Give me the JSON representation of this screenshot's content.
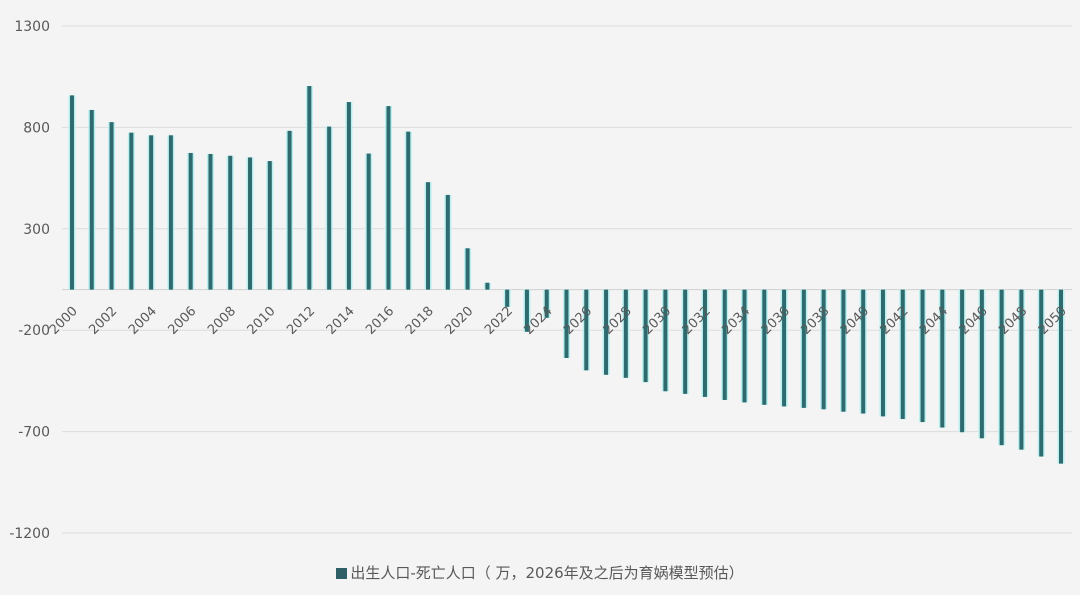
{
  "chart_data": {
    "type": "bar",
    "title": "",
    "xlabel": "",
    "ylabel": "",
    "ylim": [
      -1200,
      1300
    ],
    "yticks": [
      1300,
      800,
      300,
      -200,
      -700,
      -1200
    ],
    "grid": true,
    "legend_position": "bottom",
    "categories": [
      "2000",
      "2001",
      "2002",
      "2003",
      "2004",
      "2005",
      "2006",
      "2007",
      "2008",
      "2009",
      "2010",
      "2011",
      "2012",
      "2013",
      "2014",
      "2015",
      "2016",
      "2017",
      "2018",
      "2019",
      "2020",
      "2021",
      "2022",
      "2023",
      "2024",
      "2025",
      "2026",
      "2027",
      "2028",
      "2029",
      "2030",
      "2031",
      "2032",
      "2033",
      "2034",
      "2035",
      "2036",
      "2037",
      "2038",
      "2039",
      "2040",
      "2041",
      "2042",
      "2043",
      "2044",
      "2045",
      "2046",
      "2047",
      "2048",
      "2049",
      "2050"
    ],
    "xtick_labels": [
      "2000",
      "2002",
      "2004",
      "2006",
      "2008",
      "2010",
      "2012",
      "2014",
      "2016",
      "2018",
      "2020",
      "2022",
      "2024",
      "2026",
      "2028",
      "2030",
      "2032",
      "2034",
      "2036",
      "2038",
      "2040",
      "2042",
      "2044",
      "2046",
      "2048",
      "2050"
    ],
    "series": [
      {
        "name": "出生人口-死亡人口（ 万，2026年及之后为育娲模型预估）",
        "color": "#2f6b6e",
        "values": [
          958,
          886,
          826,
          774,
          761,
          761,
          674,
          669,
          660,
          652,
          634,
          783,
          1004,
          804,
          925,
          671,
          905,
          779,
          530,
          467,
          204,
          34,
          -85,
          -208,
          -139,
          -337,
          -398,
          -420,
          -435,
          -456,
          -501,
          -514,
          -529,
          -544,
          -556,
          -568,
          -576,
          -583,
          -590,
          -602,
          -611,
          -625,
          -638,
          -653,
          -680,
          -703,
          -733,
          -767,
          -789,
          -823,
          -858
        ]
      }
    ]
  },
  "legend": {
    "label": "出生人口-死亡人口（ 万，2026年及之后为育娲模型预估）"
  }
}
